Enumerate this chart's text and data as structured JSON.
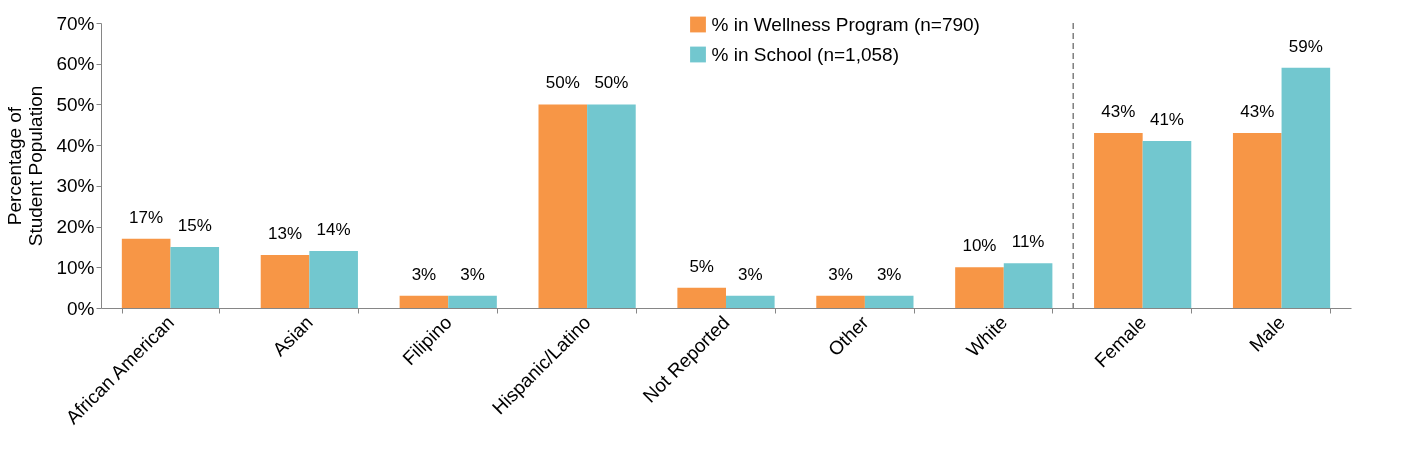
{
  "chart_data": {
    "type": "bar",
    "ylabel": "Percentage of\nStudent Population",
    "categories": [
      "African American",
      "Asian",
      "Filipino",
      "Hispanic/Latino",
      "Not Reported",
      "Other",
      "White",
      "Female",
      "Male"
    ],
    "series": [
      {
        "name": "% in Wellness Program (n=790)",
        "color": "#f79646",
        "values": [
          17,
          13,
          3,
          50,
          5,
          3,
          10,
          43,
          43
        ],
        "value_labels": [
          "17%",
          "13%",
          "3%",
          "50%",
          "5%",
          "3%",
          "10%",
          "43%",
          "43%"
        ]
      },
      {
        "name": "% in School (n=1,058)",
        "color": "#72c7cf",
        "values": [
          15,
          14,
          3,
          50,
          3,
          3,
          11,
          41,
          59
        ],
        "value_labels": [
          "15%",
          "14%",
          "3%",
          "50%",
          "3%",
          "3%",
          "11%",
          "41%",
          "59%"
        ]
      }
    ],
    "ylim": [
      0,
      70
    ],
    "yticks": [
      {
        "value": 0,
        "label": "0%"
      },
      {
        "value": 10,
        "label": "10%"
      },
      {
        "value": 20,
        "label": "20%"
      },
      {
        "value": 30,
        "label": "30%"
      },
      {
        "value": 40,
        "label": "40%"
      },
      {
        "value": 50,
        "label": "50%"
      },
      {
        "value": 60,
        "label": "60%"
      },
      {
        "value": 70,
        "label": "70%"
      }
    ],
    "ref_lines": [
      {
        "axis": "x",
        "value": "Female",
        "color": "#7f7f7f",
        "line_style": "dashed"
      }
    ],
    "grid": false,
    "legend": "top"
  }
}
